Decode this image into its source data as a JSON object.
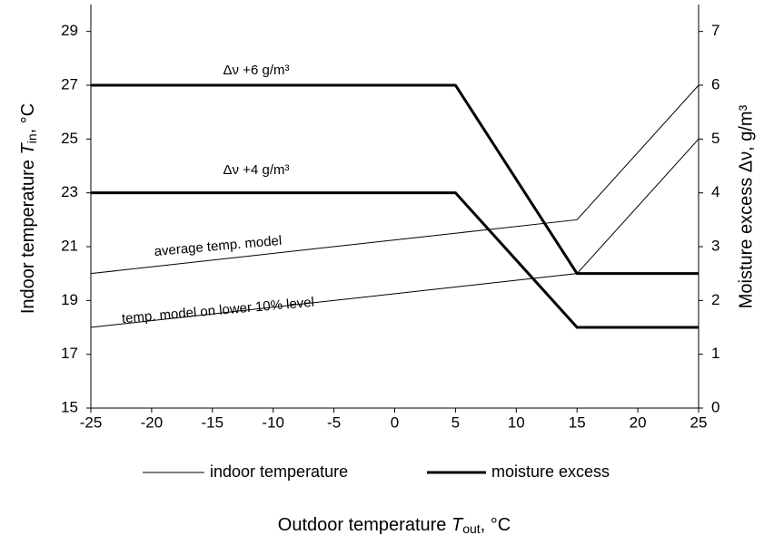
{
  "chart_data": {
    "type": "line",
    "x_label": [
      "Outdoor temperature ",
      "T",
      "out",
      ", °C"
    ],
    "y_label": [
      "Indoor temperature ",
      "T",
      "in",
      ", °C"
    ],
    "y2_label": "Moisture excess Δν, g/m³",
    "xlim": [
      -25,
      25
    ],
    "xticks": [
      -25,
      -20,
      -15,
      -10,
      -5,
      0,
      5,
      10,
      15,
      20,
      25
    ],
    "ylim": [
      15,
      30
    ],
    "yticks": [
      15,
      17,
      19,
      21,
      23,
      25,
      27,
      29
    ],
    "y2lim": [
      0,
      7.5
    ],
    "y2ticks": [
      0,
      1,
      2,
      3,
      4,
      5,
      6,
      7
    ],
    "grid": false,
    "series": [
      {
        "name": "average temp. model",
        "style": "thin",
        "color": "#000000",
        "x": [
          -25,
          15,
          25
        ],
        "values": [
          20,
          22,
          27
        ]
      },
      {
        "name": "temp. model on lower 10% level",
        "style": "thin",
        "color": "#000000",
        "x": [
          -25,
          15,
          25
        ],
        "values": [
          18,
          20,
          25
        ]
      },
      {
        "name": "Δν +6 g/m³",
        "style": "thick",
        "color": "#000000",
        "axis": "y2",
        "x": [
          -25,
          5,
          15,
          25
        ],
        "values": [
          6,
          6,
          2.5,
          2.5
        ]
      },
      {
        "name": "Δν +4 g/m³",
        "style": "thick",
        "color": "#000000",
        "axis": "y2",
        "x": [
          -25,
          5,
          15,
          25
        ],
        "values": [
          4,
          4,
          1.5,
          1.5
        ]
      }
    ],
    "legend": [
      {
        "label": "indoor temperature",
        "style": "thin"
      },
      {
        "label": "moisture excess",
        "style": "thick"
      }
    ]
  }
}
